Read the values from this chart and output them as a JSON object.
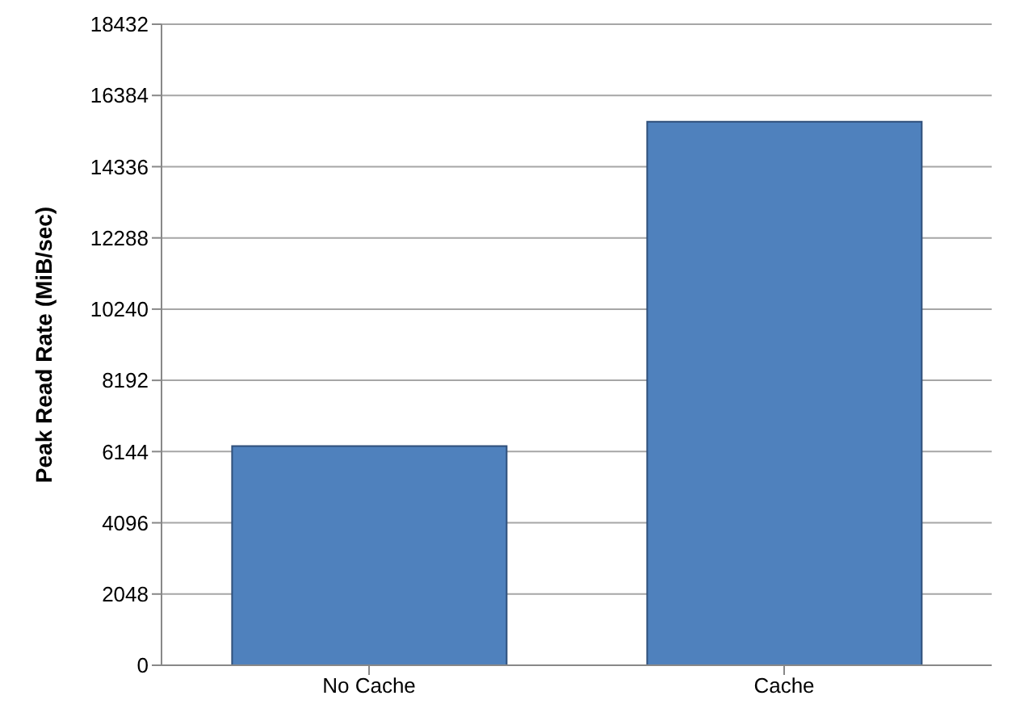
{
  "chart_data": {
    "type": "bar",
    "ylabel": "Peak Read Rate (MiB/sec)",
    "categories": [
      "No Cache",
      "Cache"
    ],
    "values": [
      6300,
      15630
    ],
    "color": "#4f81bd",
    "ylim": [
      0,
      18432
    ],
    "yticks": [
      0,
      2048,
      4096,
      6144,
      8192,
      10240,
      12288,
      14336,
      16384,
      18432
    ],
    "grid": "y"
  }
}
